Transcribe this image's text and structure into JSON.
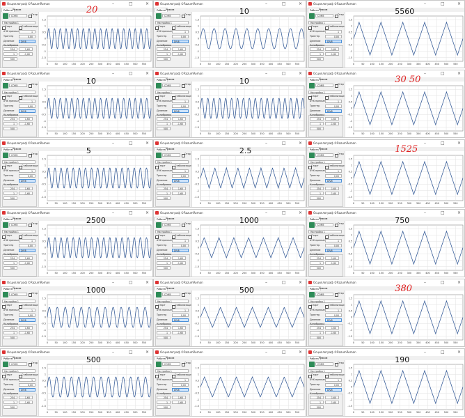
{
  "window": {
    "title": "Осциллограф ©RazumRoman",
    "minimize": "–",
    "maximize": "□",
    "close": "×",
    "tabs": [
      "Работа",
      "Режим"
    ]
  },
  "controls": {
    "port": "COM5",
    "open_label": "Откр",
    "preset": "Настройка 1",
    "start_label": "Старт",
    "stabilize_label": "Стабилизация",
    "prescaler_label": "АЧХ прескалер",
    "prescaler_value": "1",
    "trigger_label": "Триггер",
    "trigger_value": "0,00",
    "division_label": "Деление",
    "division_value": "DIV8",
    "calibration_label": "Калибровка",
    "calib": [
      "254",
      "1,60",
      "1",
      "-1,60",
      "500"
    ]
  },
  "axes": {
    "y_ticks": [
      "1.5",
      "1",
      "0.5",
      "0",
      "-0.5",
      "-1",
      "-1.5"
    ],
    "y_range": [
      -1.8,
      1.8
    ],
    "x_ticks": [
      "0",
      "50",
      "100",
      "150",
      "200",
      "250",
      "300",
      "350",
      "400",
      "450",
      "500",
      "550"
    ],
    "x_range": [
      0,
      590
    ],
    "grid": true,
    "line_color": "#3a5f9a"
  },
  "panels": [
    {
      "label": "20",
      "label_style": "red",
      "waveform": "sine",
      "cycles": 18,
      "amplitude": 0.8
    },
    {
      "label": "10",
      "label_style": "black",
      "waveform": "sine",
      "cycles": 9.5,
      "amplitude": 0.8
    },
    {
      "label": "5560",
      "label_style": "black",
      "waveform": "triangle",
      "cycles": 5,
      "amplitude": 1.3
    },
    {
      "label": "10",
      "label_style": "black",
      "waveform": "sine",
      "cycles": 18,
      "amplitude": 0.8
    },
    {
      "label": "10",
      "label_style": "black",
      "waveform": "sine",
      "cycles": 17.5,
      "amplitude": 0.8
    },
    {
      "label": "30 50",
      "label_style": "red",
      "waveform": "triangle",
      "cycles": 5,
      "amplitude": 1.3
    },
    {
      "label": "5",
      "label_style": "black",
      "waveform": "sine",
      "cycles": 17,
      "amplitude": 0.8
    },
    {
      "label": "2.5",
      "label_style": "black",
      "waveform": "triangle",
      "cycles": 9,
      "amplitude": 0.8
    },
    {
      "label": "1525",
      "label_style": "red",
      "waveform": "triangle",
      "cycles": 5,
      "amplitude": 1.3
    },
    {
      "label": "2500",
      "label_style": "black",
      "waveform": "sine",
      "cycles": 17,
      "amplitude": 0.8
    },
    {
      "label": "1000",
      "label_style": "black",
      "waveform": "triangle",
      "cycles": 7,
      "amplitude": 0.8
    },
    {
      "label": "750",
      "label_style": "black",
      "waveform": "triangle",
      "cycles": 5,
      "amplitude": 1.3
    },
    {
      "label": "1000",
      "label_style": "black",
      "waveform": "sine",
      "cycles": 13,
      "amplitude": 0.8
    },
    {
      "label": "500",
      "label_style": "black",
      "waveform": "triangle",
      "cycles": 6.5,
      "amplitude": 0.8
    },
    {
      "label": "380",
      "label_style": "red",
      "waveform": "triangle",
      "cycles": 5,
      "amplitude": 1.3
    },
    {
      "label": "500",
      "label_style": "black",
      "waveform": "sine",
      "cycles": 14,
      "amplitude": 0.8
    },
    {
      "label": "",
      "label_style": "black",
      "waveform": "triangle",
      "cycles": 6.5,
      "amplitude": 0.8
    },
    {
      "label": "190",
      "label_style": "black",
      "waveform": "triangle",
      "cycles": 5,
      "amplitude": 1.3
    }
  ]
}
